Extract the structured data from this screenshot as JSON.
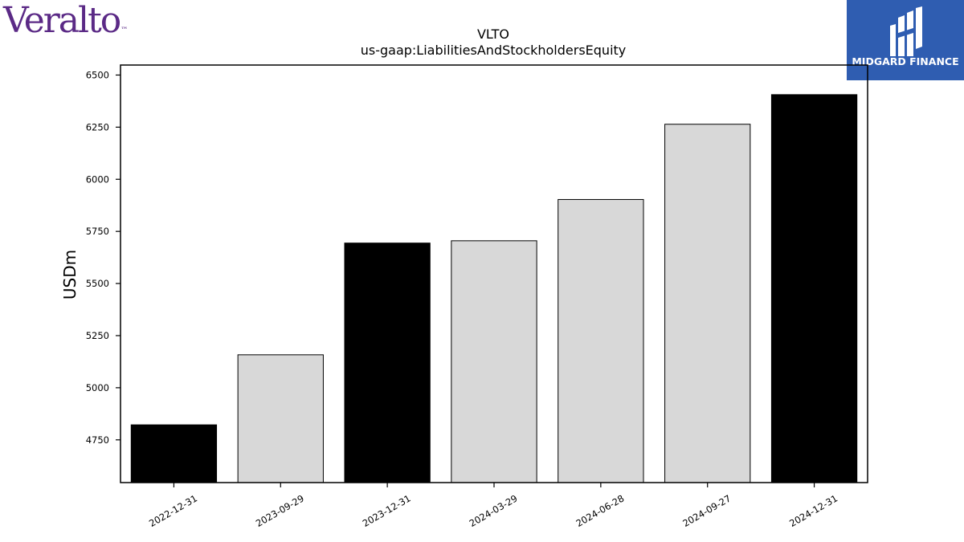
{
  "logos": {
    "left": "Veralto",
    "right": "MIDGARD FINANCE"
  },
  "colors": {
    "dark_bar": "#000000",
    "light_bar": "#d8d8d8",
    "brand_purple": "#5b2a86",
    "brand_blue": "#2f5db1"
  },
  "chart_data": {
    "type": "bar",
    "title": "VLTO",
    "subtitle": "us-gaap:LiabilitiesAndStockholdersEquity",
    "xlabel": "",
    "ylabel": "USDm",
    "categories": [
      "2022-12-31",
      "2023-09-29",
      "2023-12-31",
      "2024-03-29",
      "2024-06-28",
      "2024-09-27",
      "2024-12-31"
    ],
    "values": [
      4822,
      5158,
      5694,
      5705,
      5903,
      6264,
      6406
    ],
    "bar_colors": [
      "#000000",
      "#d8d8d8",
      "#000000",
      "#d8d8d8",
      "#d8d8d8",
      "#d8d8d8",
      "#000000"
    ],
    "ylim": [
      4545,
      6548
    ],
    "yticks": [
      4750,
      5000,
      5250,
      5500,
      5750,
      6000,
      6250,
      6500
    ],
    "grid": false,
    "legend": "none"
  }
}
